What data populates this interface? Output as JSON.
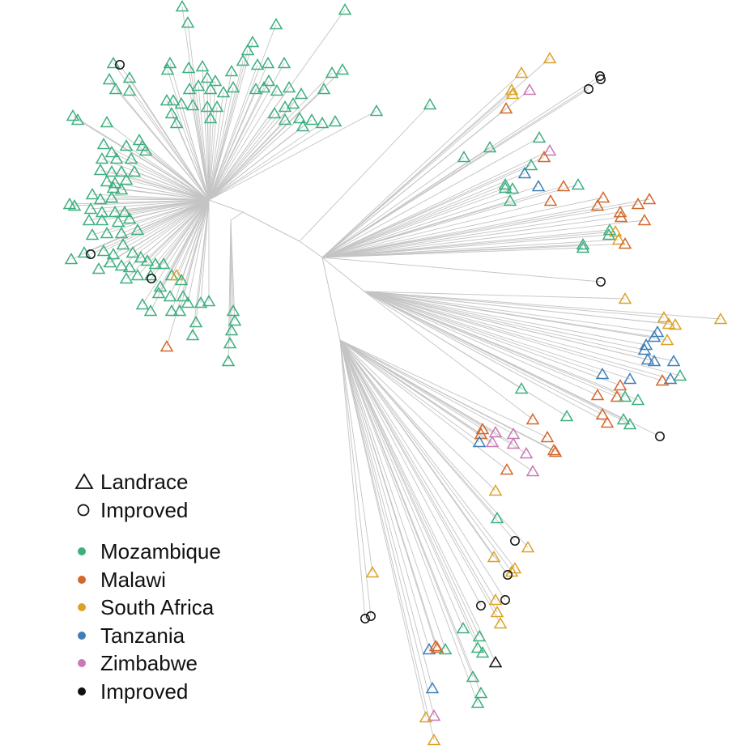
{
  "figure": {
    "type": "unrooted phylogenetic tree",
    "branch_color": "#c4c4c4"
  },
  "legend": {
    "shapes": [
      {
        "key": "landrace",
        "label": "Landrace",
        "symbol": "triangle"
      },
      {
        "key": "improved",
        "label": "Improved",
        "symbol": "circle"
      }
    ],
    "colors": [
      {
        "key": "mozambique",
        "label": "Mozambique",
        "color": "#3daf7f"
      },
      {
        "key": "malawi",
        "label": "Malawi",
        "color": "#d2682a"
      },
      {
        "key": "south_africa",
        "label": "South Africa",
        "color": "#dca227"
      },
      {
        "key": "tanzania",
        "label": "Tanzania",
        "color": "#3f7fb8"
      },
      {
        "key": "zimbabwe",
        "label": "Zimbabwe",
        "color": "#c979b4"
      },
      {
        "key": "improved",
        "label": "Improved",
        "color": "#111111"
      }
    ]
  }
}
